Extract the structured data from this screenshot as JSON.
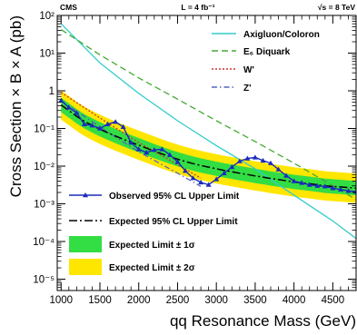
{
  "chart_data": {
    "type": "line",
    "header": {
      "left": "CMS",
      "center": "L = 4 fb⁻¹",
      "right": "√s = 8 TeV"
    },
    "xlabel": "qq Resonance Mass (GeV)",
    "ylabel": "Cross Section × B × A (pb)",
    "xlim": [
      950,
      4800
    ],
    "ylim": [
      5e-06,
      100
    ],
    "yscale": "log",
    "x_ticks": [
      1000,
      1500,
      2000,
      2500,
      3000,
      3500,
      4000,
      4500
    ],
    "y_ticks": [
      "10⁻⁵",
      "10⁻⁴",
      "10⁻³",
      "10⁻²",
      "10⁻¹",
      "1",
      "10¹",
      "10²"
    ],
    "expected_x": [
      1000,
      1100,
      1200,
      1300,
      1400,
      1500,
      1600,
      1700,
      1800,
      1900,
      2000,
      2100,
      2200,
      2300,
      2400,
      2500,
      2600,
      2700,
      2800,
      2900,
      3000,
      3100,
      3200,
      3300,
      3400,
      3500,
      3600,
      3700,
      3800,
      3900,
      4000,
      4100,
      4200,
      4300,
      4400,
      4500,
      4600,
      4700,
      4800
    ],
    "expected": [
      0.42,
      0.3,
      0.21,
      0.155,
      0.12,
      0.095,
      0.077,
      0.063,
      0.052,
      0.043,
      0.036,
      0.03,
      0.025,
      0.021,
      0.0178,
      0.0153,
      0.0133,
      0.0117,
      0.0104,
      0.0094,
      0.0085,
      0.0077,
      0.0071,
      0.0065,
      0.006,
      0.0055,
      0.0051,
      0.0047,
      0.0044,
      0.0041,
      0.0038,
      0.0036,
      0.0034,
      0.0032,
      0.003,
      0.0029,
      0.0028,
      0.0027,
      0.0026
    ],
    "band_1sigma_factor": 1.55,
    "band_2sigma_factor": 2.45,
    "observed_x": [
      1000,
      1100,
      1200,
      1300,
      1400,
      1500,
      1600,
      1700,
      1800,
      1900,
      2000,
      2100,
      2200,
      2300,
      2400,
      2500,
      2600,
      2700,
      2800,
      2900,
      3000,
      3100,
      3200,
      3300,
      3400,
      3500,
      3600,
      3700,
      3800,
      3900,
      4000,
      4100,
      4200,
      4300,
      4400,
      4500,
      4600,
      4700,
      4800
    ],
    "observed": [
      0.55,
      0.36,
      0.26,
      0.13,
      0.12,
      0.1,
      0.13,
      0.15,
      0.11,
      0.042,
      0.028,
      0.023,
      0.027,
      0.028,
      0.02,
      0.013,
      0.0075,
      0.0048,
      0.0037,
      0.0032,
      0.0045,
      0.0065,
      0.0095,
      0.0135,
      0.016,
      0.017,
      0.014,
      0.012,
      0.0082,
      0.0056,
      0.004,
      0.0036,
      0.0032,
      0.003,
      0.0029,
      0.0026,
      0.0024,
      0.0022,
      0.0021
    ],
    "series": [
      {
        "name": "Axigluon/Coloron",
        "color": "#33cccc",
        "style": "solid",
        "x": [
          1000,
          1500,
          2000,
          2500,
          3000,
          3500,
          4000,
          4500,
          4800
        ],
        "values": [
          60,
          5.5,
          0.85,
          0.16,
          0.035,
          0.0085,
          0.0017,
          0.00035,
          0.00012
        ]
      },
      {
        "name": "E₆ Diquark",
        "color": "#44aa33",
        "style": "dash",
        "x": [
          1000,
          1500,
          2000,
          2500,
          3000,
          3500,
          4000,
          4500,
          4800
        ],
        "values": [
          42,
          9,
          2.2,
          0.6,
          0.16,
          0.045,
          0.012,
          0.003,
          0.0013
        ]
      },
      {
        "name": "W'",
        "color": "#cc3333",
        "style": "dot",
        "x": [
          1000,
          1500,
          2000,
          2500,
          2800
        ],
        "values": [
          0.9,
          0.19,
          0.042,
          0.011,
          0.0048
        ]
      },
      {
        "name": "Z'",
        "color": "#5566bb",
        "style": "dashdot",
        "x": [
          1000,
          1500,
          2000,
          2500,
          2800
        ],
        "values": [
          0.55,
          0.11,
          0.024,
          0.0065,
          0.0029
        ]
      }
    ],
    "legend": {
      "observed": "Observed 95% CL Upper Limit",
      "expected": "Expected 95% CL Upper Limit",
      "band1": "Expected Limit ± 1σ",
      "band2": "Expected Limit ± 2σ"
    },
    "colors": {
      "band1": "#33dd44",
      "band2": "#ffe600",
      "observed": "#1a2bbb",
      "expected": "#000000"
    }
  }
}
